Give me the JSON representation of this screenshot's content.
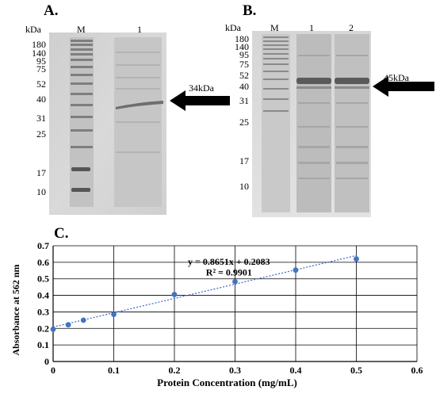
{
  "panel_a": {
    "letter": "A.",
    "kda_header": "kDa",
    "lanes": [
      "M",
      "1"
    ],
    "markers": [
      "180",
      "140",
      "95",
      "75",
      "52",
      "40",
      "31",
      "25",
      "17",
      "10"
    ],
    "arrow_label": "34kDa"
  },
  "panel_b": {
    "letter": "B.",
    "kda_header": "kDa",
    "lanes": [
      "M",
      "1",
      "2"
    ],
    "markers": [
      "180",
      "140",
      "95",
      "75",
      "52",
      "40",
      "31",
      "25",
      "17",
      "10"
    ],
    "arrow_label": "45kDa"
  },
  "panel_c": {
    "letter": "C."
  },
  "chart_data": {
    "type": "scatter",
    "title": "",
    "xlabel": "Protein Concentration (mg/mL)",
    "ylabel": "Absorbance at 562 nm",
    "xlim": [
      0,
      0.6
    ],
    "ylim": [
      0,
      0.7
    ],
    "x_ticks": [
      "0",
      "0.1",
      "0.2",
      "0.3",
      "0.4",
      "0.5",
      "0.6"
    ],
    "y_ticks": [
      "0",
      "0.1",
      "0.2",
      "0.3",
      "0.4",
      "0.5",
      "0.6",
      "0.7"
    ],
    "x": [
      0,
      0.025,
      0.05,
      0.1,
      0.2,
      0.3,
      0.4,
      0.5
    ],
    "y": [
      0.195,
      0.222,
      0.25,
      0.285,
      0.405,
      0.483,
      0.553,
      0.62
    ],
    "trendline": {
      "slope": 0.8651,
      "intercept": 0.2083,
      "style": "dotted"
    },
    "equation": "y = 0.8651x + 0.2083",
    "r_squared": "R² = 0.9901",
    "grid": true,
    "point_color": "#4472c4",
    "line_color": "#4472c4"
  }
}
